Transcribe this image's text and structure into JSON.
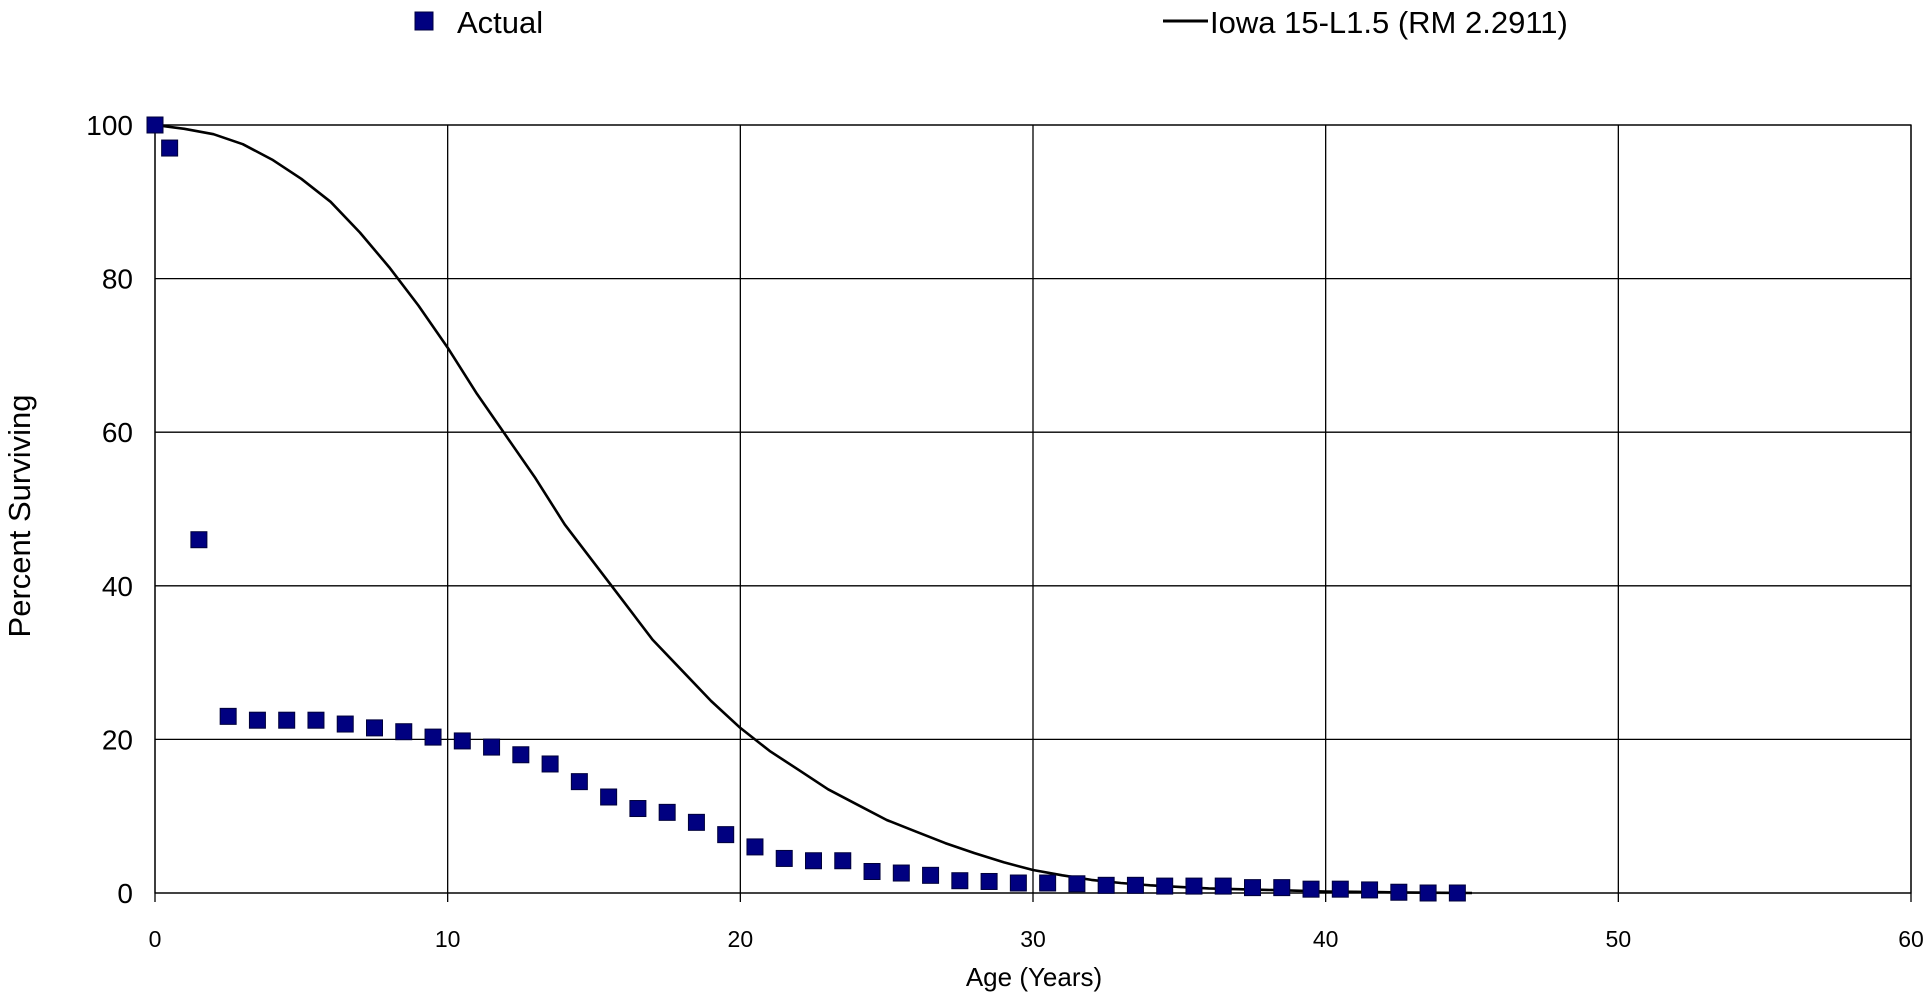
{
  "chart_data": {
    "type": "scatter",
    "xlabel": "Age (Years)",
    "ylabel": "Percent Surviving",
    "xlim": [
      0,
      60
    ],
    "ylim": [
      0,
      100
    ],
    "xticks": [
      "0",
      "10",
      "20",
      "30",
      "40",
      "50",
      "60"
    ],
    "yticks": [
      "0",
      "20",
      "40",
      "60",
      "80",
      "100"
    ],
    "grid": true,
    "legend_position": "top",
    "series": [
      {
        "name": "Actual",
        "kind": "markers",
        "marker": "square",
        "color": "#000080",
        "x": [
          0,
          0.5,
          1.5,
          2.5,
          3.5,
          4.5,
          5.5,
          6.5,
          7.5,
          8.5,
          9.5,
          10.5,
          11.5,
          12.5,
          13.5,
          14.5,
          15.5,
          16.5,
          17.5,
          18.5,
          19.5,
          20.5,
          21.5,
          22.5,
          23.5,
          24.5,
          25.5,
          26.5,
          27.5,
          28.5,
          29.5,
          30.5,
          31.5,
          32.5,
          33.5,
          34.5,
          35.5,
          36.5,
          37.5,
          38.5,
          39.5,
          40.5,
          41.5,
          42.5,
          43.5,
          44.5
        ],
        "y": [
          100,
          97,
          46,
          23,
          22.5,
          22.5,
          22.5,
          22,
          21.5,
          21,
          20.3,
          19.8,
          19,
          18,
          16.8,
          14.5,
          12.5,
          11,
          10.5,
          9.2,
          7.6,
          6,
          4.5,
          4.2,
          4.2,
          2.8,
          2.6,
          2.3,
          1.6,
          1.5,
          1.3,
          1.3,
          1.2,
          1,
          1,
          0.9,
          0.9,
          0.9,
          0.7,
          0.7,
          0.5,
          0.5,
          0.4,
          0.1,
          0,
          0
        ]
      },
      {
        "name": "Iowa 15-L1.5 (RM 2.2911)",
        "kind": "line",
        "color": "#000000",
        "x": [
          0,
          1,
          2,
          3,
          4,
          5,
          6,
          7,
          8,
          9,
          10,
          11,
          12,
          13,
          14,
          15,
          16,
          17,
          18,
          19,
          20,
          21,
          22,
          23,
          24,
          25,
          26,
          27,
          28,
          29,
          30,
          31,
          32,
          33,
          34,
          35,
          36,
          37,
          38,
          39,
          40,
          41,
          42,
          43,
          44,
          45
        ],
        "y": [
          100,
          99.5,
          98.8,
          97.5,
          95.5,
          93,
          90,
          86,
          81.5,
          76.5,
          71,
          65,
          59.5,
          54,
          48,
          43,
          38,
          33,
          29,
          25,
          21.5,
          18.5,
          16,
          13.5,
          11.5,
          9.5,
          8,
          6.5,
          5.2,
          4,
          3,
          2.3,
          1.7,
          1.3,
          1,
          0.8,
          0.6,
          0.5,
          0.4,
          0.3,
          0.2,
          0.15,
          0.1,
          0.05,
          0.02,
          0
        ]
      }
    ]
  }
}
